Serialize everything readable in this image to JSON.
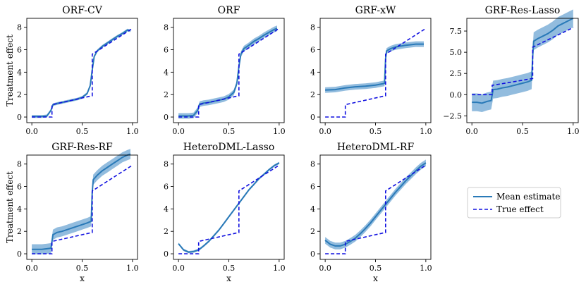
{
  "figure": {
    "legend": {
      "placement": "right, lower row (empty panel slot)",
      "entries": [
        "Mean estimate",
        "True effect"
      ]
    },
    "colors": {
      "mean": "#2a7ab8",
      "band": "#7fb0d8",
      "true": "#1010e0"
    }
  },
  "chart_data": [
    {
      "type": "line",
      "title": "ORF-CV",
      "xlabel": "",
      "ylabel": "Treatment effect",
      "xlim": [
        -0.05,
        1.05
      ],
      "ylim": [
        -0.5,
        8.8
      ],
      "xticks": [
        "0.0",
        "0.5",
        "1.0"
      ],
      "yticks": [
        "0",
        "2",
        "4",
        "6",
        "8"
      ],
      "x": [
        0.0,
        0.05,
        0.1,
        0.15,
        0.19,
        0.21,
        0.25,
        0.3,
        0.35,
        0.4,
        0.45,
        0.5,
        0.55,
        0.58,
        0.6,
        0.62,
        0.65,
        0.7,
        0.75,
        0.8,
        0.85,
        0.9,
        0.95,
        0.98
      ],
      "series": [
        {
          "name": "Mean estimate",
          "values": [
            0.05,
            0.05,
            0.05,
            0.1,
            0.6,
            1.1,
            1.2,
            1.3,
            1.4,
            1.5,
            1.6,
            1.75,
            2.1,
            2.8,
            4.2,
            5.4,
            5.9,
            6.3,
            6.6,
            6.9,
            7.2,
            7.45,
            7.75,
            7.7
          ],
          "band": 0.12
        },
        {
          "name": "True effect",
          "x": [
            0.0,
            0.2,
            0.2,
            0.6,
            0.6,
            1.0
          ],
          "values": [
            0.0,
            0.0,
            1.1,
            1.9,
            5.6,
            7.9
          ]
        }
      ]
    },
    {
      "type": "line",
      "title": "ORF",
      "xlabel": "",
      "ylabel": "",
      "xlim": [
        -0.05,
        1.05
      ],
      "ylim": [
        -0.5,
        8.8
      ],
      "xticks": [
        "0.0",
        "0.5",
        "1.0"
      ],
      "yticks": [
        "0",
        "2",
        "4",
        "6",
        "8"
      ],
      "x": [
        0.0,
        0.05,
        0.1,
        0.15,
        0.19,
        0.21,
        0.25,
        0.3,
        0.35,
        0.4,
        0.45,
        0.5,
        0.55,
        0.58,
        0.6,
        0.62,
        0.65,
        0.7,
        0.75,
        0.8,
        0.85,
        0.9,
        0.95,
        0.98
      ],
      "series": [
        {
          "name": "Mean estimate",
          "values": [
            0.1,
            0.1,
            0.1,
            0.15,
            0.6,
            1.15,
            1.25,
            1.3,
            1.4,
            1.5,
            1.6,
            1.8,
            2.2,
            3.0,
            4.5,
            5.6,
            6.1,
            6.4,
            6.75,
            7.0,
            7.3,
            7.55,
            7.8,
            7.9
          ],
          "band": 0.25
        },
        {
          "name": "True effect",
          "x": [
            0.0,
            0.2,
            0.2,
            0.6,
            0.6,
            1.0
          ],
          "values": [
            0.0,
            0.0,
            1.1,
            1.9,
            5.6,
            7.9
          ]
        }
      ]
    },
    {
      "type": "line",
      "title": "GRF-xW",
      "xlabel": "",
      "ylabel": "",
      "xlim": [
        -0.05,
        1.05
      ],
      "ylim": [
        -0.5,
        8.8
      ],
      "xticks": [
        "0.0",
        "0.5",
        "1.0"
      ],
      "yticks": [
        "0",
        "2",
        "4",
        "6",
        "8"
      ],
      "x": [
        0.0,
        0.1,
        0.2,
        0.3,
        0.4,
        0.5,
        0.59,
        0.6,
        0.61,
        0.65,
        0.7,
        0.8,
        0.9,
        0.98
      ],
      "series": [
        {
          "name": "Mean estimate",
          "values": [
            2.4,
            2.45,
            2.6,
            2.7,
            2.75,
            2.85,
            3.0,
            5.2,
            5.9,
            6.1,
            6.25,
            6.4,
            6.5,
            6.5
          ],
          "band": 0.25
        },
        {
          "name": "True effect",
          "x": [
            0.0,
            0.2,
            0.2,
            0.6,
            0.6,
            1.0
          ],
          "values": [
            0.0,
            0.0,
            1.1,
            1.9,
            5.6,
            7.9
          ]
        }
      ]
    },
    {
      "type": "line",
      "title": "GRF-Res-Lasso",
      "xlabel": "",
      "ylabel": "",
      "xlim": [
        -0.05,
        1.05
      ],
      "ylim": [
        -3.3,
        9.0
      ],
      "xticks": [
        "0.0",
        "0.5",
        "1.0"
      ],
      "yticks": [
        "−2.5",
        "0.0",
        "2.5",
        "5.0",
        "7.5"
      ],
      "ytick_values": [
        -2.5,
        0.0,
        2.5,
        5.0,
        7.5
      ],
      "x": [
        0.0,
        0.05,
        0.1,
        0.15,
        0.19,
        0.21,
        0.25,
        0.3,
        0.35,
        0.4,
        0.45,
        0.5,
        0.55,
        0.59,
        0.6,
        0.61,
        0.65,
        0.7,
        0.75,
        0.8,
        0.85,
        0.9,
        0.95,
        1.0
      ],
      "series": [
        {
          "name": "Mean estimate",
          "values": [
            -0.9,
            -0.9,
            -1.0,
            -0.8,
            -0.7,
            0.6,
            0.65,
            0.8,
            0.9,
            1.05,
            1.2,
            1.35,
            1.5,
            1.7,
            4.5,
            6.3,
            6.6,
            6.9,
            7.2,
            7.6,
            8.1,
            8.4,
            8.7,
            9.0
          ],
          "band": 1.05
        },
        {
          "name": "True effect",
          "x": [
            0.0,
            0.2,
            0.2,
            0.6,
            0.6,
            1.0
          ],
          "values": [
            0.0,
            0.0,
            1.1,
            1.9,
            5.6,
            7.9
          ]
        }
      ]
    },
    {
      "type": "line",
      "title": "GRF-Res-RF",
      "xlabel": "x",
      "ylabel": "Treatment effect",
      "xlim": [
        -0.05,
        1.05
      ],
      "ylim": [
        -0.5,
        8.8
      ],
      "xticks": [
        "0.0",
        "0.5",
        "1.0"
      ],
      "yticks": [
        "0",
        "2",
        "4",
        "6",
        "8"
      ],
      "x": [
        0.0,
        0.05,
        0.1,
        0.15,
        0.19,
        0.21,
        0.25,
        0.3,
        0.35,
        0.4,
        0.45,
        0.5,
        0.55,
        0.59,
        0.6,
        0.61,
        0.65,
        0.7,
        0.75,
        0.8,
        0.85,
        0.9,
        0.95,
        0.98
      ],
      "series": [
        {
          "name": "Mean estimate",
          "values": [
            0.4,
            0.4,
            0.4,
            0.45,
            0.5,
            1.7,
            1.9,
            2.0,
            2.15,
            2.3,
            2.45,
            2.6,
            2.75,
            2.9,
            5.5,
            6.6,
            7.0,
            7.4,
            7.7,
            8.0,
            8.3,
            8.6,
            8.8,
            8.9
          ],
          "band": 0.45
        },
        {
          "name": "True effect",
          "x": [
            0.0,
            0.2,
            0.2,
            0.6,
            0.6,
            1.0
          ],
          "values": [
            0.0,
            0.0,
            1.1,
            1.9,
            5.6,
            7.9
          ]
        }
      ]
    },
    {
      "type": "line",
      "title": "HeteroDML-Lasso",
      "xlabel": "x",
      "ylabel": "",
      "xlim": [
        -0.05,
        1.05
      ],
      "ylim": [
        -0.5,
        8.8
      ],
      "xticks": [
        "0.0",
        "0.5",
        "1.0"
      ],
      "yticks": [
        "0",
        "2",
        "4",
        "6",
        "8"
      ],
      "x": [
        0.0,
        0.05,
        0.1,
        0.15,
        0.2,
        0.25,
        0.3,
        0.35,
        0.4,
        0.45,
        0.5,
        0.55,
        0.6,
        0.65,
        0.7,
        0.75,
        0.8,
        0.85,
        0.9,
        0.95,
        1.0
      ],
      "series": [
        {
          "name": "Mean estimate",
          "values": [
            0.9,
            0.35,
            0.15,
            0.2,
            0.35,
            0.7,
            1.1,
            1.6,
            2.1,
            2.7,
            3.3,
            3.9,
            4.5,
            5.1,
            5.7,
            6.2,
            6.7,
            7.1,
            7.5,
            7.85,
            8.1
          ],
          "band": 0.1
        },
        {
          "name": "True effect",
          "x": [
            0.0,
            0.2,
            0.2,
            0.6,
            0.6,
            1.0
          ],
          "values": [
            0.0,
            0.0,
            1.1,
            1.9,
            5.6,
            7.9
          ]
        }
      ]
    },
    {
      "type": "line",
      "title": "HeteroDML-RF",
      "xlabel": "x",
      "ylabel": "",
      "xlim": [
        -0.05,
        1.05
      ],
      "ylim": [
        -0.5,
        8.8
      ],
      "xticks": [
        "0.0",
        "0.5",
        "1.0"
      ],
      "yticks": [
        "0",
        "2",
        "4",
        "6",
        "8"
      ],
      "x": [
        0.0,
        0.05,
        0.1,
        0.15,
        0.2,
        0.25,
        0.3,
        0.35,
        0.4,
        0.45,
        0.5,
        0.55,
        0.6,
        0.65,
        0.7,
        0.75,
        0.8,
        0.85,
        0.9,
        0.95,
        1.0
      ],
      "series": [
        {
          "name": "Mean estimate",
          "values": [
            1.2,
            0.85,
            0.7,
            0.7,
            0.85,
            1.1,
            1.4,
            1.8,
            2.25,
            2.75,
            3.3,
            3.85,
            4.4,
            4.95,
            5.5,
            6.0,
            6.5,
            6.95,
            7.4,
            7.8,
            8.1
          ],
          "band": 0.3
        },
        {
          "name": "True effect",
          "x": [
            0.0,
            0.2,
            0.2,
            0.6,
            0.6,
            1.0
          ],
          "values": [
            0.0,
            0.0,
            1.1,
            1.9,
            5.6,
            7.9
          ]
        }
      ]
    }
  ]
}
